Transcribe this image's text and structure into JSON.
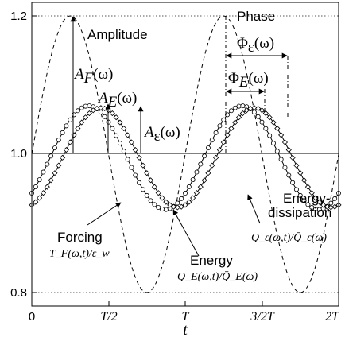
{
  "chart_data": {
    "type": "line",
    "title": "",
    "xlabel": "t",
    "ylabel": "",
    "xlim": [
      0,
      2
    ],
    "ylim": [
      0.78,
      1.22
    ],
    "x_ticks": [
      {
        "value": 0,
        "label": "0"
      },
      {
        "value": 0.5,
        "label": "T/2"
      },
      {
        "value": 1,
        "label": "T"
      },
      {
        "value": 1.5,
        "label": "3/2T"
      },
      {
        "value": 2,
        "label": "2T"
      }
    ],
    "y_ticks": [
      {
        "value": 0.8,
        "label": "0.8"
      },
      {
        "value": 1.0,
        "label": "1.0"
      },
      {
        "value": 1.2,
        "label": "1.2"
      }
    ],
    "grid": "dotted",
    "reference_line": 1.0,
    "series": [
      {
        "name": "Forcing",
        "style": "dashed",
        "mean": 1.0,
        "amplitude": 0.2,
        "peak_x": 0.25,
        "period": 1
      },
      {
        "name": "Energy",
        "style": "circles",
        "mean": 0.995,
        "amplitude": 0.075,
        "peak_x": 0.37,
        "period": 1
      },
      {
        "name": "Energy-dissipation",
        "style": "diamonds",
        "mean": 0.995,
        "amplitude": 0.072,
        "peak_x": 0.45,
        "period": 1
      }
    ],
    "annotations": {
      "amplitude": "Amplitude",
      "phase": "Phase",
      "a_f_main": "A",
      "a_f_sub": "F",
      "a_f_arg": "(ω)",
      "a_e_main": "A",
      "a_e_sub": "E",
      "a_e_arg": "(ω)",
      "a_eps_main": "A",
      "a_eps_sub": "ε",
      "a_eps_arg": "(ω)",
      "phi_eps_main": "Φ",
      "phi_eps_sub": "ε",
      "phi_eps_arg": "(ω)",
      "phi_e_main": "Φ",
      "phi_e_sub": "E",
      "phi_e_arg": "(ω)",
      "forcing_label": "Forcing",
      "forcing_formula": "T_F(ω,t)/ε_w",
      "energy_label": "Energy",
      "energy_formula": "Q_E(ω,t)/Q̄_E(ω)",
      "dissipation_label_1": "Energy-",
      "dissipation_label_2": "dissipation",
      "dissipation_formula": "Q_ε(ω,t)/Q̄_ε(ω)"
    }
  }
}
